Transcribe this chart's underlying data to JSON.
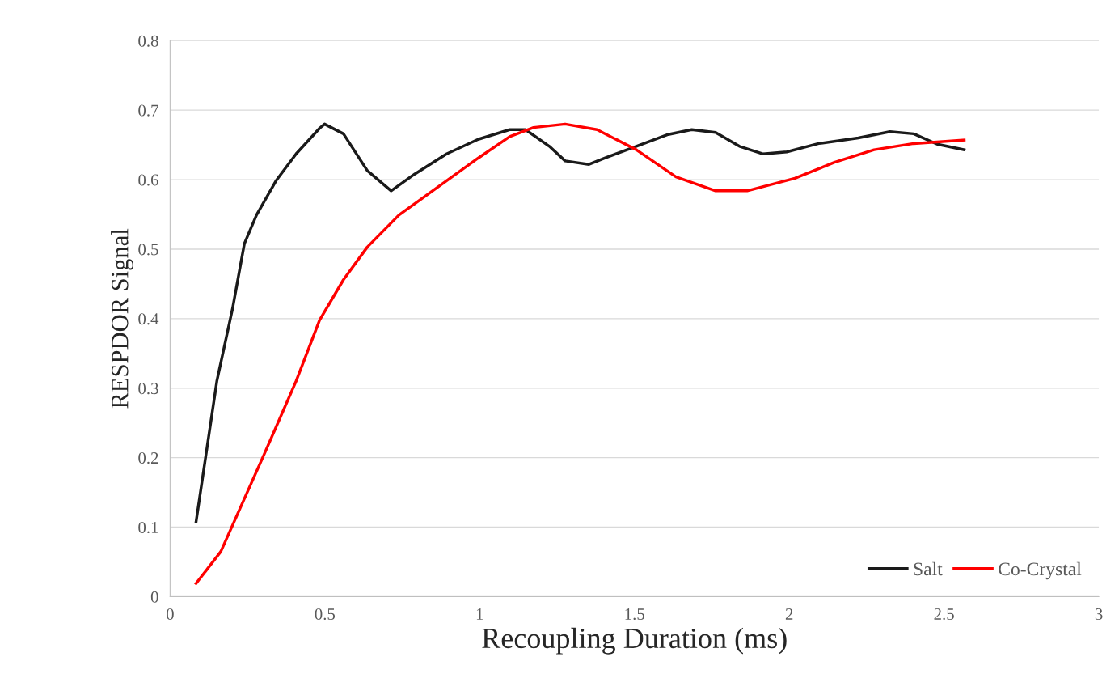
{
  "chart_data": {
    "type": "line",
    "xlabel": "Recoupling Duration (ms)",
    "ylabel": "RESPDOR Signal",
    "xlim": [
      0,
      3
    ],
    "xticks": [
      0,
      0.5,
      1,
      1.5,
      2,
      2.5,
      3
    ],
    "ylim": [
      0,
      0.8
    ],
    "yticks": [
      0,
      0.1,
      0.2,
      0.3,
      0.4,
      0.5,
      0.6,
      0.7,
      0.8
    ],
    "grid": "y",
    "legend": "bottom right",
    "marker": "none",
    "line_style": "solid",
    "series": [
      {
        "name": "Salt",
        "color": "#1a1a1a",
        "x": [
          0.084,
          0.151,
          0.202,
          0.24,
          0.279,
          0.343,
          0.407,
          0.483,
          0.499,
          0.56,
          0.637,
          0.714,
          0.79,
          0.893,
          0.995,
          1.097,
          1.148,
          1.225,
          1.276,
          1.353,
          1.404,
          1.506,
          1.609,
          1.685,
          1.762,
          1.839,
          1.916,
          1.992,
          2.095,
          2.223,
          2.325,
          2.402,
          2.478,
          2.565
        ],
        "values": [
          0.108,
          0.31,
          0.415,
          0.508,
          0.549,
          0.599,
          0.637,
          0.674,
          0.68,
          0.666,
          0.613,
          0.584,
          0.608,
          0.637,
          0.658,
          0.672,
          0.672,
          0.648,
          0.627,
          0.622,
          0.631,
          0.648,
          0.665,
          0.672,
          0.668,
          0.648,
          0.637,
          0.64,
          0.652,
          0.66,
          0.669,
          0.666,
          0.651,
          0.643
        ]
      },
      {
        "name": "Co-Crystal",
        "color": "#ff0000",
        "x": [
          0.084,
          0.164,
          0.228,
          0.304,
          0.407,
          0.483,
          0.56,
          0.637,
          0.739,
          0.867,
          0.995,
          1.097,
          1.174,
          1.276,
          1.379,
          1.506,
          1.634,
          1.762,
          1.864,
          2.018,
          2.146,
          2.274,
          2.402,
          2.565
        ],
        "values": [
          0.019,
          0.065,
          0.129,
          0.205,
          0.31,
          0.398,
          0.456,
          0.503,
          0.549,
          0.59,
          0.631,
          0.662,
          0.675,
          0.68,
          0.672,
          0.643,
          0.604,
          0.584,
          0.584,
          0.602,
          0.625,
          0.643,
          0.652,
          0.657
        ]
      }
    ]
  }
}
